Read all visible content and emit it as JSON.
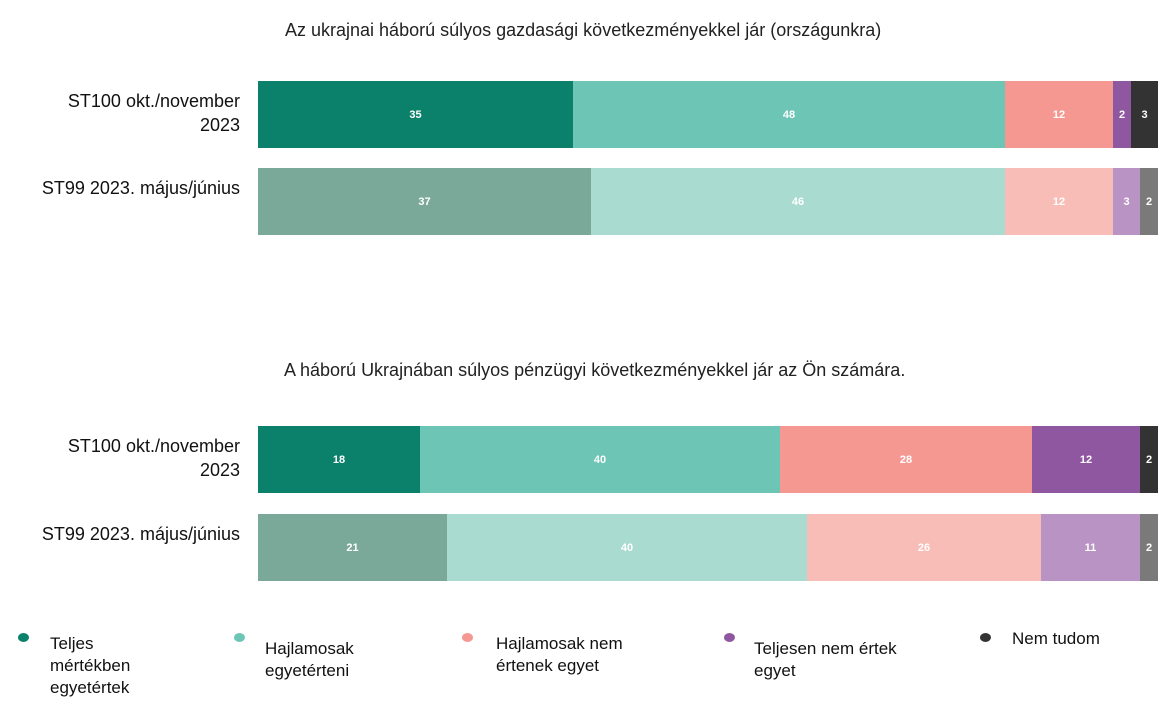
{
  "chart_data": [
    {
      "type": "stacked-bar",
      "title": "Az ukrajnai háború súlyos gazdasági következményekkel jár (országunkra)",
      "categories": [
        "ST100 okt./november 2023",
        "ST99 2023. május/június"
      ],
      "xlim": [
        0,
        100
      ],
      "series": [
        {
          "values": [
            35,
            37
          ]
        },
        {
          "values": [
            48,
            46
          ]
        },
        {
          "values": [
            12,
            12
          ]
        },
        {
          "values": [
            2,
            3
          ]
        },
        {
          "values": [
            3,
            2
          ]
        }
      ]
    },
    {
      "type": "stacked-bar",
      "title": "A háború Ukrajnában súlyos pénzügyi következményekkel jár az Ön számára.",
      "categories": [
        "ST100 okt./november 2023",
        "ST99 2023. május/június"
      ],
      "xlim": [
        0,
        100
      ],
      "series": [
        {
          "values": [
            18,
            21
          ]
        },
        {
          "values": [
            40,
            40
          ]
        },
        {
          "values": [
            28,
            26
          ]
        },
        {
          "values": [
            12,
            11
          ]
        },
        {
          "values": [
            2,
            2
          ]
        }
      ]
    }
  ],
  "legend": [
    {
      "name": "Teljes mértékben egyetértek",
      "colors": [
        "#0b806a",
        "#7aa899"
      ]
    },
    {
      "name": "Hajlamosak egyetérteni",
      "colors": [
        "#6dc5b5",
        "#aadbd0"
      ]
    },
    {
      "name": "Hajlamosak nem értenek egyet",
      "colors": [
        "#f59892",
        "#f8bdb7"
      ]
    },
    {
      "name": "Teljesen nem értek egyet",
      "colors": [
        "#8f579f",
        "#b893c4"
      ]
    },
    {
      "name": "Nem tudom",
      "colors": [
        "#333333",
        "#7a7a7a"
      ]
    }
  ]
}
